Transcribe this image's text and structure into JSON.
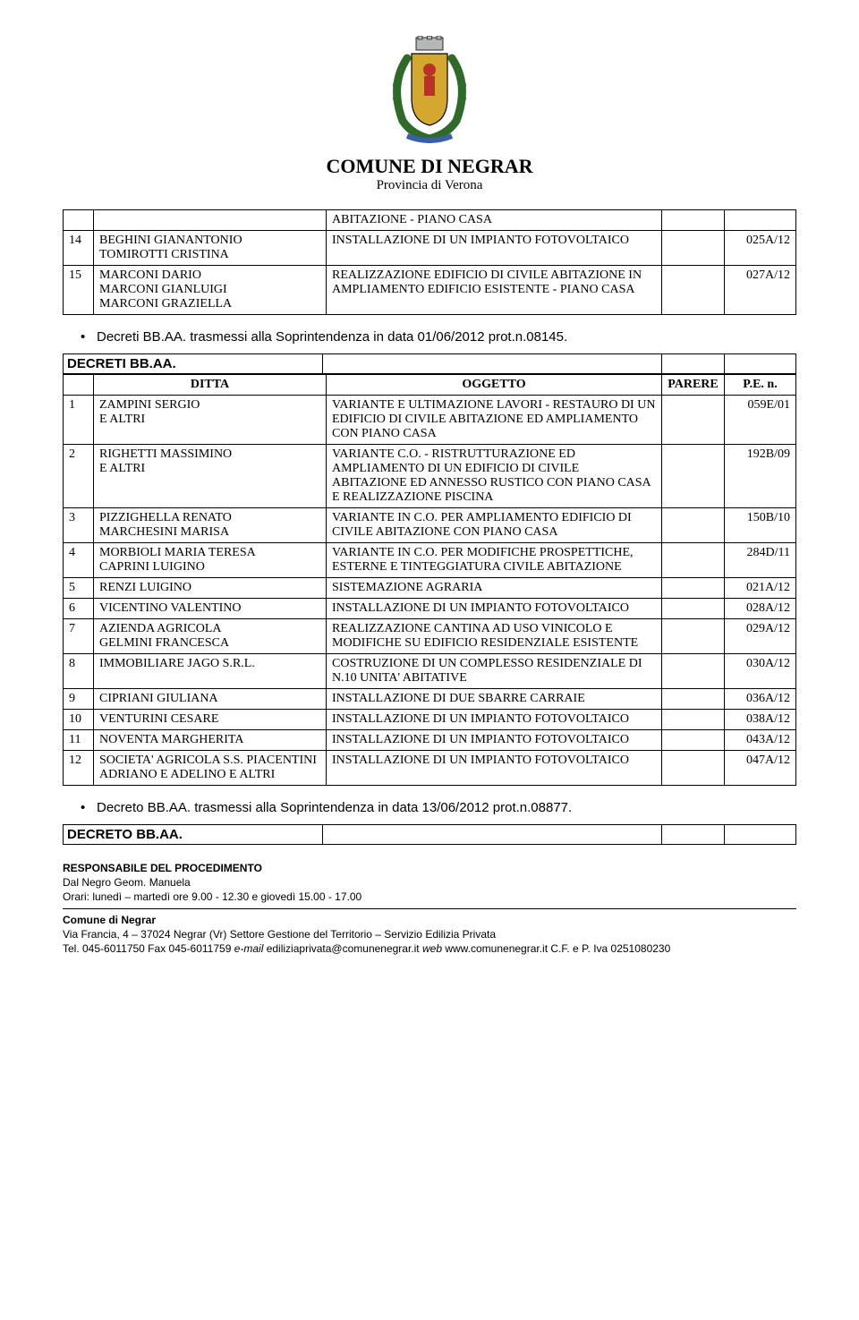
{
  "header": {
    "title": "COMUNE DI NEGRAR",
    "subtitle": "Provincia di Verona"
  },
  "table1": {
    "rows": [
      {
        "n": "",
        "ditta": "",
        "ogg": "ABITAZIONE - PIANO CASA",
        "par": "",
        "pe": ""
      },
      {
        "n": "14",
        "ditta": "BEGHINI GIANANTONIO\nTOMIROTTI CRISTINA",
        "ogg": "INSTALLAZIONE DI UN IMPIANTO FOTOVOLTAICO",
        "par": "",
        "pe": "025A/12"
      },
      {
        "n": "15",
        "ditta": "MARCONI DARIO\nMARCONI GIANLUIGI\nMARCONI GRAZIELLA",
        "ogg": "REALIZZAZIONE EDIFICIO DI CIVILE ABITAZIONE IN AMPLIAMENTO EDIFICIO ESISTENTE - PIANO CASA",
        "par": "",
        "pe": "027A/12"
      }
    ]
  },
  "bullet1": "Decreti BB.AA. trasmessi alla Soprintendenza in data 01/06/2012 prot.n.08145.",
  "section2_label": "DECRETI BB.AA.",
  "table2": {
    "headers": {
      "ditta": "DITTA",
      "ogg": "OGGETTO",
      "par": "PARERE",
      "pe": "P.E. n."
    },
    "rows": [
      {
        "n": "1",
        "ditta": "ZAMPINI SERGIO\nE ALTRI",
        "ogg": "VARIANTE E ULTIMAZIONE LAVORI - RESTAURO DI UN EDIFICIO DI CIVILE ABITAZIONE ED AMPLIAMENTO CON PIANO CASA",
        "par": "",
        "pe": "059E/01"
      },
      {
        "n": "2",
        "ditta": "RIGHETTI MASSIMINO\nE ALTRI",
        "ogg": "VARIANTE C.O. - RISTRUTTURAZIONE ED AMPLIAMENTO DI UN EDIFICIO DI CIVILE ABITAZIONE ED ANNESSO RUSTICO CON PIANO CASA E REALIZZAZIONE PISCINA",
        "par": "",
        "pe": "192B/09"
      },
      {
        "n": "3",
        "ditta": "PIZZIGHELLA RENATO\nMARCHESINI MARISA",
        "ogg": "VARIANTE IN C.O. PER AMPLIAMENTO EDIFICIO DI CIVILE ABITAZIONE CON PIANO CASA",
        "par": "",
        "pe": "150B/10"
      },
      {
        "n": "4",
        "ditta": "MORBIOLI MARIA TERESA\nCAPRINI LUIGINO",
        "ogg": "VARIANTE IN C.O. PER MODIFICHE PROSPETTICHE, ESTERNE E TINTEGGIATURA CIVILE ABITAZIONE",
        "par": "",
        "pe": "284D/11"
      },
      {
        "n": "5",
        "ditta": "RENZI LUIGINO",
        "ogg": "SISTEMAZIONE AGRARIA",
        "par": "",
        "pe": "021A/12"
      },
      {
        "n": "6",
        "ditta": "VICENTINO VALENTINO",
        "ogg": "INSTALLAZIONE DI UN IMPIANTO FOTOVOLTAICO",
        "par": "",
        "pe": "028A/12"
      },
      {
        "n": "7",
        "ditta": "AZIENDA AGRICOLA\nGELMINI FRANCESCA",
        "ogg": "REALIZZAZIONE CANTINA AD USO VINICOLO E MODIFICHE SU EDIFICIO RESIDENZIALE ESISTENTE",
        "par": "",
        "pe": "029A/12"
      },
      {
        "n": "8",
        "ditta": "IMMOBILIARE JAGO S.R.L.",
        "ogg": "COSTRUZIONE DI UN COMPLESSO RESIDENZIALE DI N.10 UNITA' ABITATIVE",
        "par": "",
        "pe": "030A/12"
      },
      {
        "n": "9",
        "ditta": "CIPRIANI GIULIANA",
        "ogg": "INSTALLAZIONE DI DUE SBARRE CARRAIE",
        "par": "",
        "pe": "036A/12"
      },
      {
        "n": "10",
        "ditta": "VENTURINI CESARE",
        "ogg": "INSTALLAZIONE DI UN IMPIANTO FOTOVOLTAICO",
        "par": "",
        "pe": "038A/12"
      },
      {
        "n": "11",
        "ditta": "NOVENTA MARGHERITA",
        "ogg": "INSTALLAZIONE DI UN IMPIANTO FOTOVOLTAICO",
        "par": "",
        "pe": "043A/12"
      },
      {
        "n": "12",
        "ditta": "SOCIETA' AGRICOLA S.S. PIACENTINI ADRIANO E ADELINO E ALTRI",
        "ogg": "INSTALLAZIONE DI UN IMPIANTO FOTOVOLTAICO",
        "par": "",
        "pe": "047A/12"
      }
    ]
  },
  "bullet2": "Decreto BB.AA. trasmessi alla Soprintendenza in data 13/06/2012 prot.n.08877.",
  "section3_label": "DECRETO BB.AA.",
  "resp": {
    "line1": "RESPONSABILE DEL PROCEDIMENTO",
    "line2": "Dal Negro Geom. Manuela",
    "line3": "Orari: lunedì – martedì ore 9.00 - 12.30 e giovedì 15.00 - 17.00"
  },
  "footer": {
    "line1": "Comune di Negrar",
    "line2_a": "Via Francia, 4 – 37024 Negrar (Vr)  ",
    "line2_b": "Settore Gestione del Territorio – Servizio Edilizia Privata",
    "line3_a": "Tel. 045-6011750 Fax 045-6011759 ",
    "line3_b": "e-mail",
    "line3_c": " ediliziaprivata@comunenegrar.it  ",
    "line3_d": "web",
    "line3_e": " www.comunenegrar.it  C.F. e  P. Iva 0251080230"
  },
  "colors": {
    "text": "#000000",
    "bg": "#ffffff",
    "crest_green": "#2e6b2b",
    "crest_gold": "#d4a82f",
    "crest_red": "#b83228",
    "crest_blue": "#3a5fa8",
    "crest_grey": "#b7b7b7"
  }
}
